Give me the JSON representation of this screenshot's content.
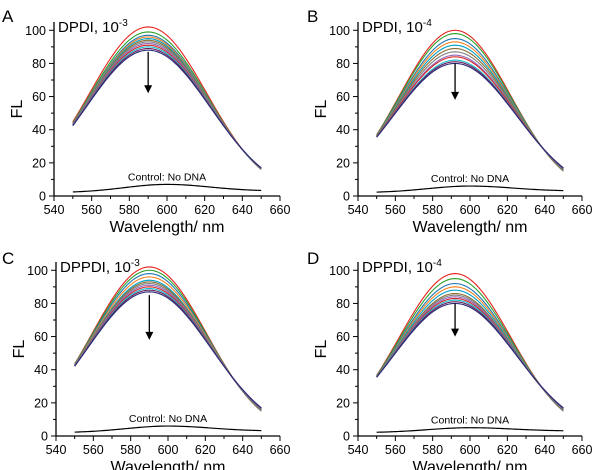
{
  "chart_data": [
    {
      "type": "line",
      "panel_letter": "A",
      "title": "DPDI, 10",
      "title_exponent": "-3",
      "xlabel": "Wavelength/ nm",
      "ylabel": "FL",
      "xlim": [
        540,
        660
      ],
      "ylim": [
        0,
        105
      ],
      "xticks": [
        540,
        560,
        580,
        600,
        620,
        640,
        660
      ],
      "yticks": [
        0,
        20,
        40,
        60,
        80,
        100
      ],
      "control_label": "Control: No DNA",
      "peak_x": 590,
      "x_range": [
        550,
        650
      ],
      "series_peaks": [
        102,
        99,
        97,
        96,
        95,
        94,
        93,
        92,
        91,
        90,
        89,
        88
      ],
      "series_end_values": [
        16,
        17
      ],
      "control": {
        "peak_x": 600,
        "peak": 7,
        "start": 2,
        "end": 3
      },
      "arrow": {
        "x": 590,
        "from": 87,
        "to": 62
      }
    },
    {
      "type": "line",
      "panel_letter": "B",
      "title": "DPDI, 10",
      "title_exponent": "-4",
      "xlabel": "Wavelength/ nm",
      "ylabel": "FL",
      "xlim": [
        540,
        660
      ],
      "ylim": [
        0,
        105
      ],
      "xticks": [
        540,
        560,
        580,
        600,
        620,
        640,
        660
      ],
      "yticks": [
        0,
        20,
        40,
        60,
        80,
        100
      ],
      "control_label": "Control: No DNA",
      "peak_x": 592,
      "x_range": [
        550,
        650
      ],
      "series_peaks": [
        100,
        98,
        95,
        93,
        91,
        89,
        87,
        85,
        84,
        82,
        81,
        80
      ],
      "series_end_values": [
        15,
        17
      ],
      "control": {
        "peak_x": 600,
        "peak": 6,
        "start": 2,
        "end": 3
      },
      "arrow": {
        "x": 592,
        "from": 80,
        "to": 58
      }
    },
    {
      "type": "line",
      "panel_letter": "C",
      "title": "DPPDI, 10",
      "title_exponent": "-3",
      "xlabel": "Wavelength/ nm",
      "ylabel": "FL",
      "xlim": [
        540,
        660
      ],
      "ylim": [
        0,
        105
      ],
      "xticks": [
        540,
        560,
        580,
        600,
        620,
        640,
        660
      ],
      "yticks": [
        0,
        20,
        40,
        60,
        80,
        100
      ],
      "control_label": "Control: No DNA",
      "peak_x": 590,
      "x_range": [
        550,
        650
      ],
      "series_peaks": [
        102,
        100,
        98,
        96,
        94,
        93,
        92,
        91,
        90,
        89,
        88,
        87
      ],
      "series_end_values": [
        15,
        17
      ],
      "control": {
        "peak_x": 600,
        "peak": 6,
        "start": 2,
        "end": 3
      },
      "arrow": {
        "x": 590,
        "from": 85,
        "to": 58
      }
    },
    {
      "type": "line",
      "panel_letter": "D",
      "title": "DPPDI, 10",
      "title_exponent": "-4",
      "xlabel": "Wavelength/ nm",
      "ylabel": "FL",
      "xlim": [
        540,
        660
      ],
      "ylim": [
        0,
        105
      ],
      "xticks": [
        540,
        560,
        580,
        600,
        620,
        640,
        660
      ],
      "yticks": [
        0,
        20,
        40,
        60,
        80,
        100
      ],
      "control_label": "Control: No DNA",
      "peak_x": 592,
      "x_range": [
        550,
        650
      ],
      "series_peaks": [
        98,
        95,
        92,
        90,
        88,
        86,
        85,
        84,
        83,
        82,
        81,
        80
      ],
      "series_end_values": [
        15,
        17
      ],
      "control": {
        "peak_x": 600,
        "peak": 5,
        "start": 2,
        "end": 3
      },
      "arrow": {
        "x": 592,
        "from": 80,
        "to": 60
      }
    }
  ],
  "series_colors": [
    "#e8231f",
    "#2ca02c",
    "#1f77b4",
    "#f58220",
    "#00a0c6",
    "#8c6d31",
    "#7f7f7f",
    "#9467bd",
    "#d62728",
    "#17becf",
    "#6b1f5c",
    "#2b2b7a"
  ],
  "control_color": "#000000",
  "arrow_color": "#000000"
}
